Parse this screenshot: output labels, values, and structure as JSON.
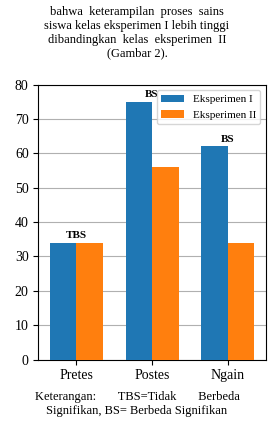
{
  "chart_data": {
    "type": "bar",
    "categories": [
      "Pretes",
      "Postes",
      "Ngain"
    ],
    "series": [
      {
        "name": "Eksperimen I",
        "values": [
          34,
          75,
          62
        ]
      },
      {
        "name": "Eksperimen II",
        "values": [
          34,
          56,
          34
        ]
      }
    ],
    "annotations": [
      "TBS",
      "BS",
      "BS"
    ],
    "ylim": [
      0,
      80
    ],
    "yticks": [
      0,
      10,
      20,
      30,
      40,
      50,
      60,
      70,
      80
    ],
    "grid": true,
    "legend": "upper right",
    "text_above": [
      "bahwa  keterampilan  proses  sains",
      "siswa kelas eksperimen I lebih tinggi",
      "dibandingkan  kelas  eksperimen  II",
      "(Gambar 2)."
    ],
    "text_below": [
      "Keterangan:       TBS=Tidak       Berbeda",
      "Signifikan, BS= Berbeda Signifikan"
    ]
  }
}
